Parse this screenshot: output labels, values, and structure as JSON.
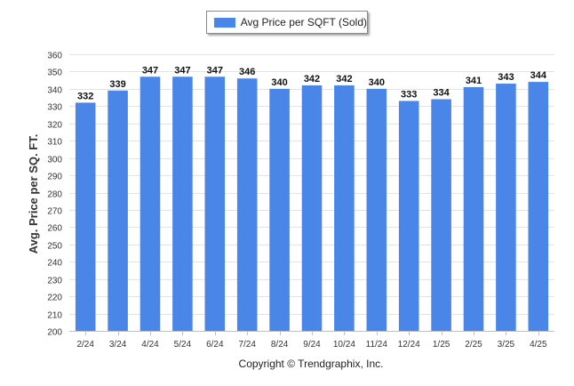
{
  "chart_data": {
    "type": "bar",
    "categories": [
      "2/24",
      "3/24",
      "4/24",
      "5/24",
      "6/24",
      "7/24",
      "8/24",
      "9/24",
      "10/24",
      "11/24",
      "12/24",
      "1/25",
      "2/25",
      "3/25",
      "4/25"
    ],
    "series": [
      {
        "name": "Avg Price per SQFT (Sold)",
        "values": [
          332,
          339,
          347,
          347,
          347,
          346,
          340,
          342,
          342,
          340,
          333,
          334,
          341,
          343,
          344
        ]
      }
    ],
    "title": "",
    "xlabel": "",
    "ylabel": "Avg. Price per SQ. FT.",
    "ylim": [
      200,
      360
    ],
    "yticks": [
      200,
      210,
      220,
      230,
      240,
      250,
      260,
      270,
      280,
      290,
      300,
      310,
      320,
      330,
      340,
      350,
      360
    ],
    "grid": true,
    "legend_position": "top-center",
    "bar_color": "#4a86e8"
  },
  "footer": {
    "copyright": "Copyright © Trendgraphix, Inc."
  }
}
